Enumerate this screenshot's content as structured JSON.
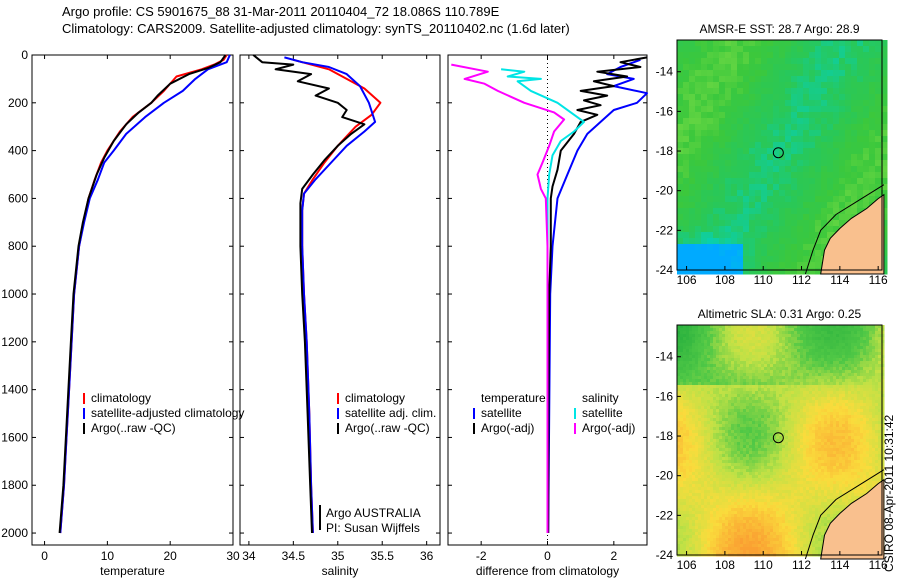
{
  "header": {
    "line1": "Argo profile: CS 5901675_88 31-Mar-2011 20110404_72 18.086S 110.789E",
    "line2": "Climatology: CARS2009. Satellite-adjusted climatology: synTS_20110402.nc (1.6d later)"
  },
  "colors": {
    "clim": "#ff0000",
    "sat": "#0000ff",
    "argo": "#000000",
    "sat_cyan": "#00e5e5",
    "argo_magenta": "#ff00ff"
  },
  "chart_data": [
    {
      "type": "line",
      "id": "temperature",
      "xlabel": "temperature",
      "ylabel": "",
      "xlim": [
        -2,
        30
      ],
      "ylim": [
        0,
        2050
      ],
      "y_inverted": true,
      "xticks": [
        0,
        10,
        20,
        30
      ],
      "yticks": [
        0,
        200,
        400,
        600,
        800,
        1000,
        1200,
        1400,
        1600,
        1800,
        2000
      ],
      "legend": [
        "climatology",
        "satellite-adjusted climatology",
        "Argo(..raw -QC)"
      ],
      "series": [
        {
          "name": "climatology",
          "color": "clim",
          "points": [
            [
              29,
              0
            ],
            [
              28.5,
              20
            ],
            [
              27,
              40
            ],
            [
              25,
              60
            ],
            [
              21,
              90
            ],
            [
              19,
              150
            ],
            [
              17,
              200
            ],
            [
              14,
              260
            ],
            [
              12,
              320
            ],
            [
              10,
              400
            ],
            [
              9,
              450
            ],
            [
              8,
              520
            ],
            [
              7,
              600
            ],
            [
              6.2,
              700
            ],
            [
              5.5,
              800
            ],
            [
              5.1,
              900
            ],
            [
              4.7,
              1000
            ],
            [
              4.3,
              1200
            ],
            [
              3.9,
              1400
            ],
            [
              3.5,
              1600
            ],
            [
              3.1,
              1800
            ],
            [
              2.5,
              2000
            ]
          ]
        },
        {
          "name": "satellite-adjusted climatology",
          "color": "sat",
          "points": [
            [
              29.5,
              0
            ],
            [
              29,
              30
            ],
            [
              26,
              60
            ],
            [
              24,
              100
            ],
            [
              22,
              150
            ],
            [
              19,
              200
            ],
            [
              16,
              260
            ],
            [
              13,
              330
            ],
            [
              11,
              400
            ],
            [
              9.5,
              450
            ],
            [
              8.5,
              520
            ],
            [
              7.2,
              600
            ],
            [
              6.3,
              700
            ],
            [
              5.5,
              800
            ],
            [
              5.1,
              900
            ],
            [
              4.7,
              1000
            ],
            [
              4.3,
              1200
            ],
            [
              3.9,
              1400
            ],
            [
              3.5,
              1600
            ],
            [
              3.1,
              1800
            ],
            [
              2.5,
              2000
            ]
          ]
        },
        {
          "name": "Argo(..raw -QC)",
          "color": "argo",
          "points": [
            [
              28.8,
              0
            ],
            [
              28,
              30
            ],
            [
              26,
              55
            ],
            [
              23,
              80
            ],
            [
              20,
              120
            ],
            [
              18,
              170
            ],
            [
              17,
              200
            ],
            [
              15,
              240
            ],
            [
              13,
              290
            ],
            [
              11,
              360
            ],
            [
              9.5,
              430
            ],
            [
              8.3,
              500
            ],
            [
              7,
              600
            ],
            [
              6.1,
              700
            ],
            [
              5.4,
              800
            ],
            [
              5,
              900
            ],
            [
              4.6,
              1000
            ],
            [
              4.2,
              1200
            ],
            [
              3.8,
              1400
            ],
            [
              3.4,
              1600
            ],
            [
              3,
              1800
            ],
            [
              2.4,
              2000
            ]
          ]
        }
      ]
    },
    {
      "type": "line",
      "id": "salinity",
      "xlabel": "salinity",
      "xlim": [
        33.9,
        36.15
      ],
      "ylim": [
        0,
        2050
      ],
      "y_inverted": true,
      "xticks": [
        34,
        34.5,
        35,
        35.5,
        36
      ],
      "legend": [
        "climatology",
        "satellite adj. clim.",
        "Argo(..raw -QC)"
      ],
      "annotation": [
        "Argo AUSTRALIA",
        "PI: Susan Wijffels"
      ],
      "series": [
        {
          "name": "climatology",
          "color": "clim",
          "points": [
            [
              34.5,
              20
            ],
            [
              34.9,
              60
            ],
            [
              35.1,
              100
            ],
            [
              35.3,
              140
            ],
            [
              35.48,
              200
            ],
            [
              35.38,
              250
            ],
            [
              35.2,
              300
            ],
            [
              35,
              380
            ],
            [
              34.85,
              450
            ],
            [
              34.72,
              520
            ],
            [
              34.62,
              580
            ],
            [
              34.6,
              650
            ],
            [
              34.6,
              800
            ],
            [
              34.62,
              1000
            ],
            [
              34.65,
              1200
            ],
            [
              34.68,
              1500
            ],
            [
              34.7,
              1800
            ],
            [
              34.72,
              2000
            ]
          ]
        },
        {
          "name": "satellite adj. clim.",
          "color": "sat",
          "points": [
            [
              34.4,
              10
            ],
            [
              34.6,
              30
            ],
            [
              34.9,
              50
            ],
            [
              35.1,
              80
            ],
            [
              35.25,
              130
            ],
            [
              35.35,
              200
            ],
            [
              35.42,
              280
            ],
            [
              35.3,
              320
            ],
            [
              35.1,
              380
            ],
            [
              34.9,
              460
            ],
            [
              34.75,
              520
            ],
            [
              34.62,
              580
            ],
            [
              34.6,
              650
            ],
            [
              34.6,
              800
            ],
            [
              34.62,
              1000
            ],
            [
              34.65,
              1200
            ],
            [
              34.68,
              1500
            ],
            [
              34.7,
              1800
            ],
            [
              34.72,
              2000
            ]
          ]
        },
        {
          "name": "Argo(..raw -QC)",
          "color": "argo",
          "points": [
            [
              34.05,
              0
            ],
            [
              34.15,
              30
            ],
            [
              34.5,
              40
            ],
            [
              34.3,
              60
            ],
            [
              34.7,
              80
            ],
            [
              34.55,
              110
            ],
            [
              34.9,
              140
            ],
            [
              34.75,
              170
            ],
            [
              35,
              200
            ],
            [
              35.1,
              230
            ],
            [
              35.05,
              260
            ],
            [
              35.3,
              290
            ],
            [
              35.15,
              330
            ],
            [
              35,
              380
            ],
            [
              34.85,
              440
            ],
            [
              34.72,
              500
            ],
            [
              34.6,
              560
            ],
            [
              34.58,
              620
            ],
            [
              34.58,
              800
            ],
            [
              34.6,
              1000
            ],
            [
              34.63,
              1200
            ],
            [
              34.66,
              1500
            ],
            [
              34.69,
              1800
            ],
            [
              34.71,
              2000
            ]
          ]
        }
      ]
    },
    {
      "type": "line",
      "id": "difference",
      "xlabel": "difference from climatology",
      "xlim": [
        -3,
        3
      ],
      "ylim": [
        0,
        2050
      ],
      "y_inverted": true,
      "xticks": [
        -2,
        0,
        2
      ],
      "legend_left_title": "temperature",
      "legend_right_title": "salinity",
      "legend_left": [
        "satellite",
        "Argo(-adj)"
      ],
      "legend_right": [
        "satellite",
        "Argo(-adj)"
      ],
      "series": [
        {
          "name": "temperature satellite",
          "color": "sat",
          "points": [
            [
              2.8,
              20
            ],
            [
              2.2,
              50
            ],
            [
              1.8,
              80
            ],
            [
              2.6,
              100
            ],
            [
              2,
              130
            ],
            [
              3,
              160
            ],
            [
              2.7,
              200
            ],
            [
              2,
              230
            ],
            [
              1.6,
              280
            ],
            [
              1.2,
              330
            ],
            [
              0.9,
              400
            ],
            [
              0.6,
              500
            ],
            [
              0.3,
              600
            ],
            [
              0.15,
              800
            ],
            [
              0.08,
              1000
            ],
            [
              0.05,
              1500
            ],
            [
              0.02,
              2000
            ]
          ]
        },
        {
          "name": "temperature Argo(-adj)",
          "color": "argo",
          "points": [
            [
              3,
              10
            ],
            [
              2.2,
              30
            ],
            [
              2.8,
              50
            ],
            [
              1.5,
              70
            ],
            [
              2.4,
              90
            ],
            [
              1.4,
              110
            ],
            [
              2,
              130
            ],
            [
              1,
              150
            ],
            [
              1.8,
              170
            ],
            [
              1.1,
              190
            ],
            [
              1.6,
              210
            ],
            [
              0.9,
              230
            ],
            [
              1.5,
              250
            ],
            [
              1.0,
              280
            ],
            [
              0.8,
              330
            ],
            [
              0.4,
              400
            ],
            [
              0.3,
              480
            ],
            [
              0.15,
              550
            ],
            [
              0.1,
              600
            ],
            [
              0.1,
              800
            ],
            [
              0.05,
              1000
            ],
            [
              0.03,
              1500
            ],
            [
              0.02,
              2000
            ]
          ]
        },
        {
          "name": "salinity satellite",
          "color": "sat_cyan",
          "points": [
            [
              -1.4,
              60
            ],
            [
              -0.7,
              70
            ],
            [
              -1.2,
              90
            ],
            [
              -0.2,
              100
            ],
            [
              -0.9,
              110
            ],
            [
              -0.5,
              150
            ],
            [
              0.3,
              200
            ],
            [
              1.1,
              280
            ],
            [
              0.8,
              320
            ],
            [
              0.4,
              360
            ],
            [
              0.15,
              420
            ],
            [
              0.05,
              500
            ],
            [
              0,
              600
            ],
            [
              0,
              800
            ],
            [
              0,
              1200
            ],
            [
              0,
              2000
            ]
          ]
        },
        {
          "name": "salinity Argo(-adj)",
          "color": "argo_magenta",
          "points": [
            [
              -2.9,
              40
            ],
            [
              -1.8,
              70
            ],
            [
              -2.5,
              100
            ],
            [
              -1.9,
              120
            ],
            [
              -1.5,
              150
            ],
            [
              -0.7,
              200
            ],
            [
              0.2,
              240
            ],
            [
              0.5,
              270
            ],
            [
              0.2,
              320
            ],
            [
              0.05,
              380
            ],
            [
              -0.15,
              450
            ],
            [
              -0.3,
              500
            ],
            [
              -0.2,
              560
            ],
            [
              -0.05,
              600
            ],
            [
              0,
              800
            ],
            [
              0,
              1200
            ],
            [
              0,
              2000
            ]
          ]
        }
      ]
    },
    {
      "type": "heatmap",
      "id": "sst",
      "title": "AMSR-E SST: 28.7 Argo: 28.9",
      "xlim": [
        105.5,
        116.2
      ],
      "ylim": [
        -24,
        -12.4
      ],
      "xticks": [
        106,
        108,
        110,
        112,
        114,
        116
      ],
      "yticks": [
        -14,
        -16,
        -18,
        -20,
        -22,
        -24
      ],
      "marker": {
        "lon": 110.789,
        "lat": -18.086
      }
    },
    {
      "type": "heatmap",
      "id": "sla",
      "title": "Altimetric SLA: 0.31 Argo: 0.25",
      "xlim": [
        105.5,
        116.2
      ],
      "ylim": [
        -24,
        -12.4
      ],
      "xticks": [
        106,
        108,
        110,
        112,
        114,
        116
      ],
      "yticks": [
        -14,
        -16,
        -18,
        -20,
        -22,
        -24
      ],
      "marker": {
        "lon": 110.789,
        "lat": -18.086
      }
    }
  ],
  "footer": {
    "stamp": "CSIRO 08-Apr-2011 10:31:42"
  }
}
